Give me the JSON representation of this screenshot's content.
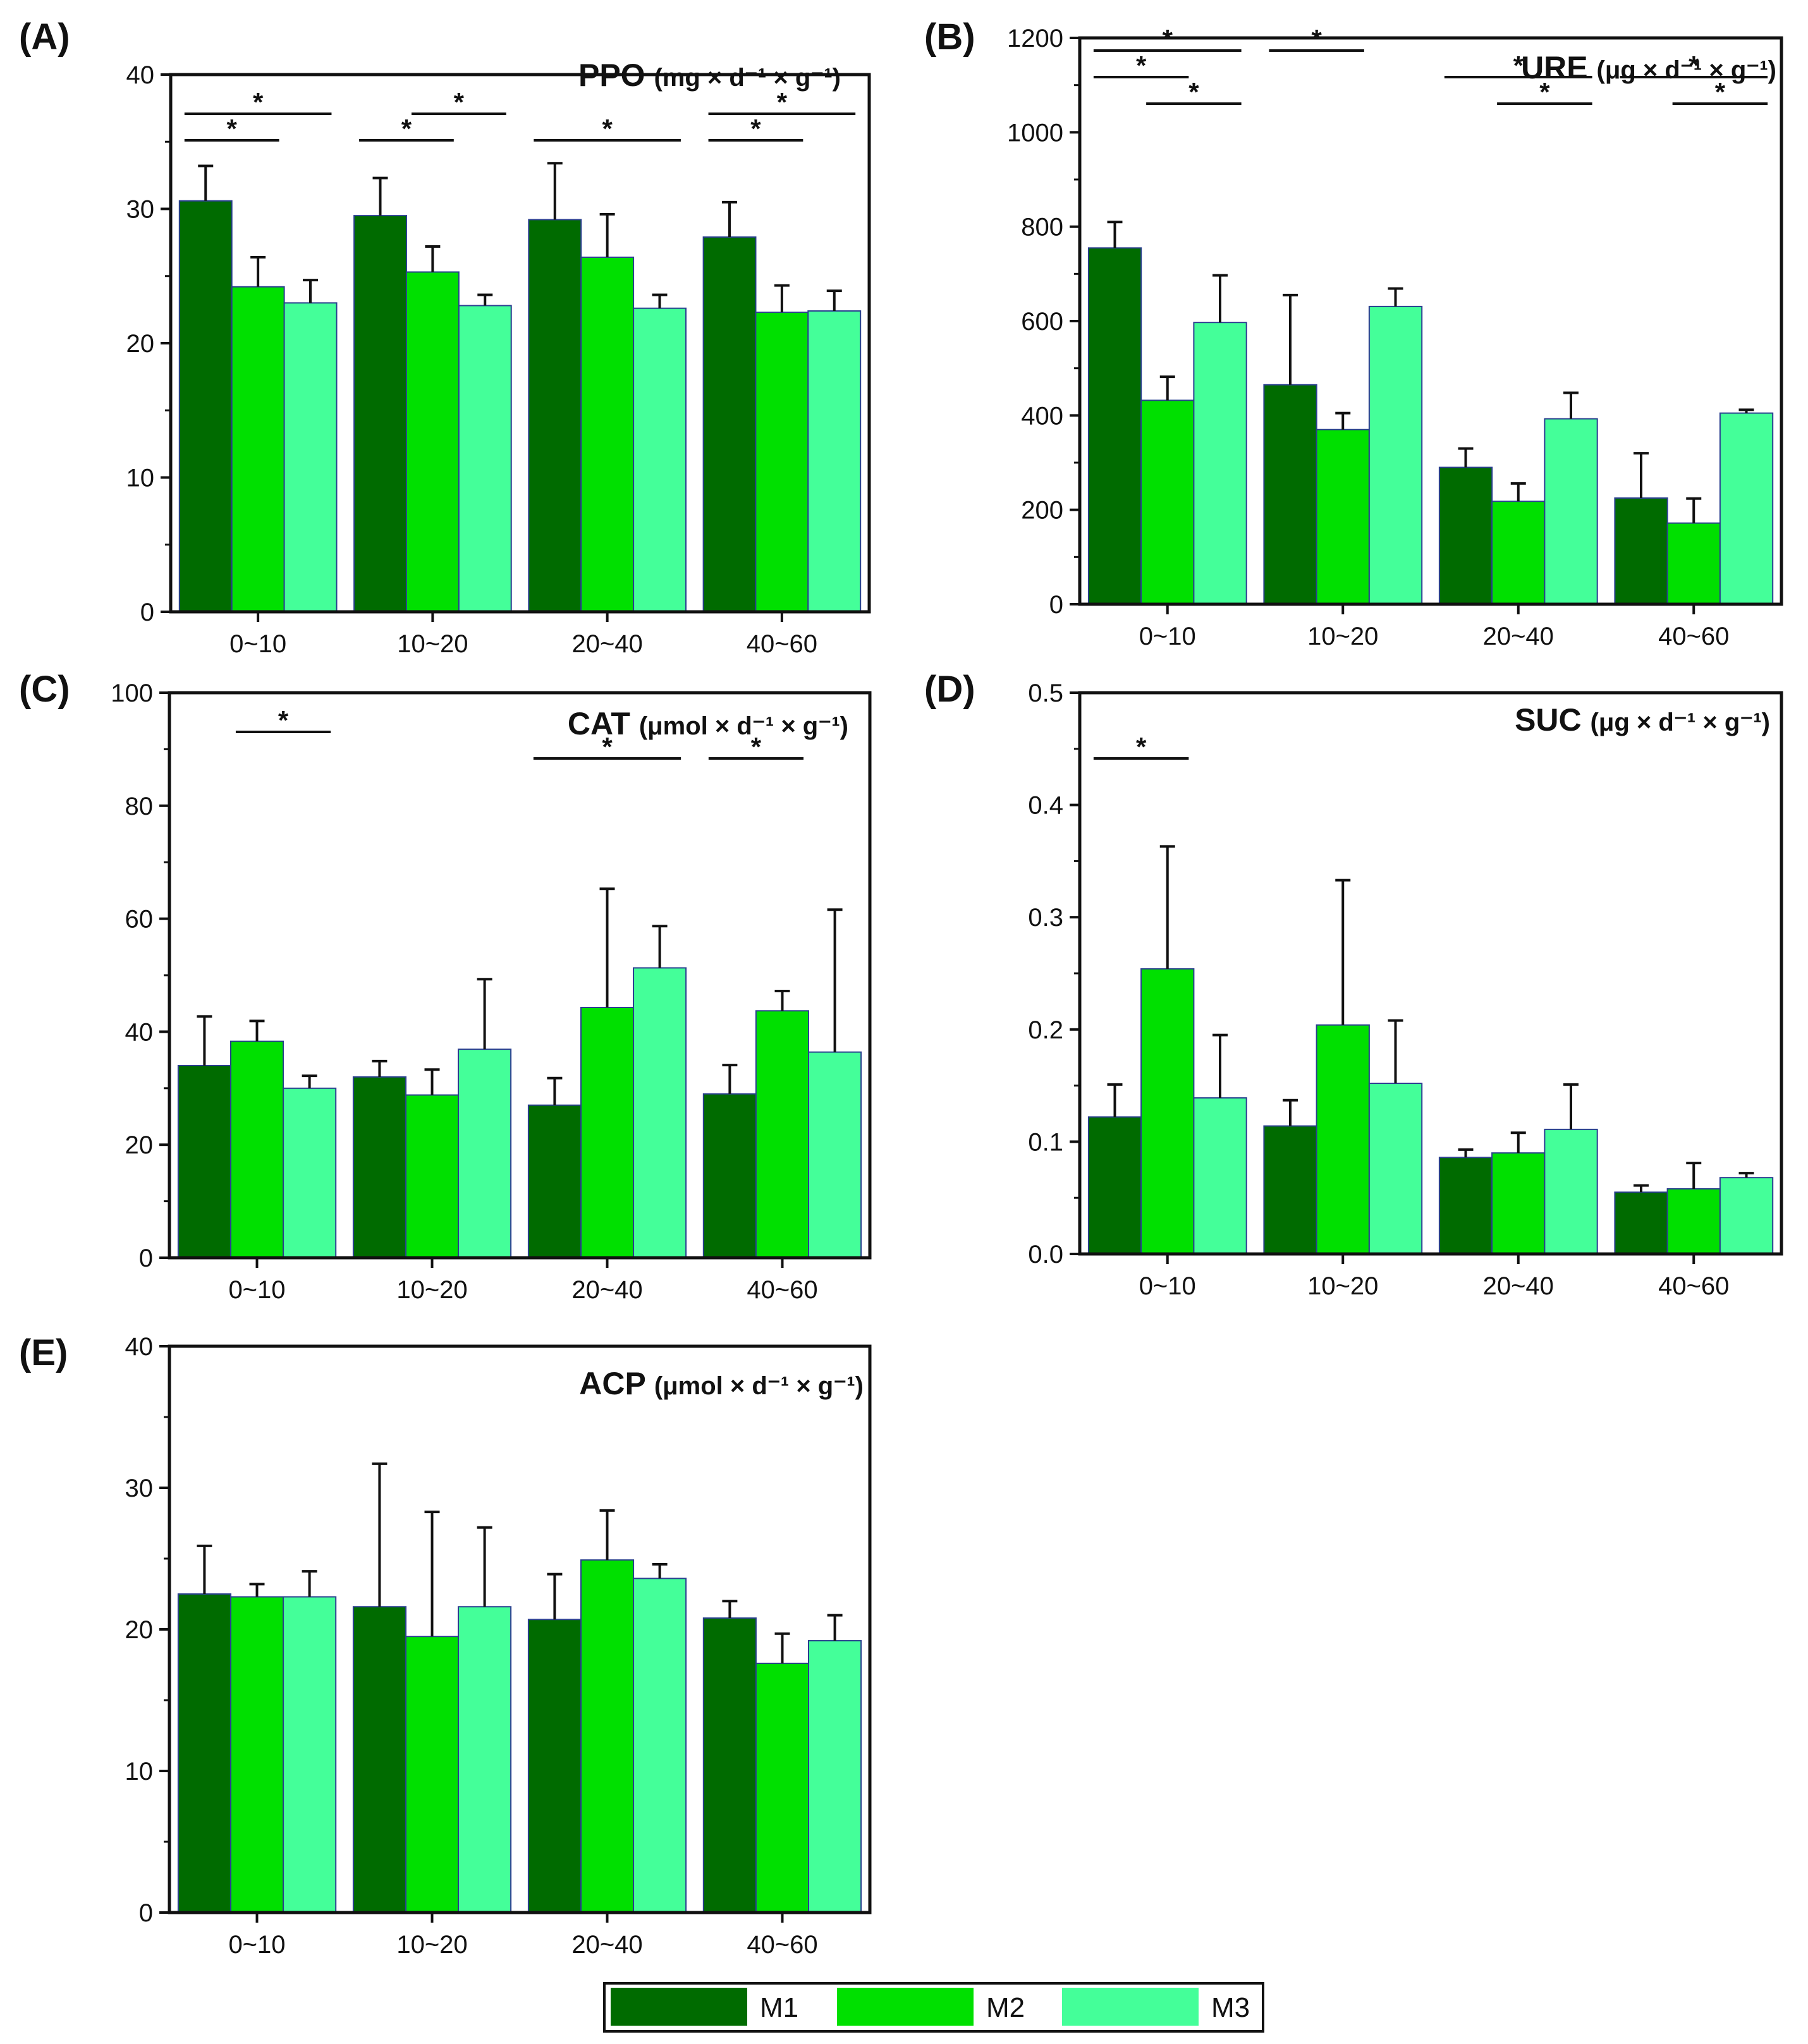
{
  "colors": {
    "M1": "#006b00",
    "M2": "#00e000",
    "M3": "#44ff99",
    "axis": "#111111",
    "bar_border": "#2a3f8f"
  },
  "legend": {
    "entries": [
      "M1",
      "M2",
      "M3"
    ]
  },
  "chart_data": [
    {
      "panel": "(A)",
      "type": "bar",
      "title": "PPO",
      "unit": "(mg × d⁻¹ × g⁻¹)",
      "categories": [
        "0~10",
        "10~20",
        "20~40",
        "40~60"
      ],
      "ylim": [
        0,
        40
      ],
      "yticks": [
        0,
        10,
        20,
        30,
        40
      ],
      "series": [
        {
          "name": "M1",
          "values": [
            30.6,
            29.5,
            29.2,
            27.9
          ],
          "errors": [
            2.6,
            2.8,
            4.2,
            2.6
          ]
        },
        {
          "name": "M2",
          "values": [
            24.2,
            25.3,
            26.4,
            22.3
          ],
          "errors": [
            2.2,
            1.9,
            3.2,
            2.0
          ]
        },
        {
          "name": "M3",
          "values": [
            23.0,
            22.8,
            22.6,
            22.4
          ],
          "errors": [
            1.7,
            0.8,
            1.0,
            1.5
          ]
        }
      ],
      "significance": [
        {
          "cat": 0,
          "from": 0,
          "to": 2,
          "level": 1,
          "label": "*"
        },
        {
          "cat": 0,
          "from": 0,
          "to": 1,
          "level": 0,
          "label": "*"
        },
        {
          "cat": 1,
          "from": 1,
          "to": 2,
          "level": 1,
          "label": "*"
        },
        {
          "cat": 1,
          "from": 0,
          "to": 1,
          "level": 0,
          "label": "*"
        },
        {
          "cat": 2,
          "from": 0,
          "to": 2,
          "level": 0,
          "label": "*"
        },
        {
          "cat": 3,
          "from": 0,
          "to": 2,
          "level": 1,
          "label": "*"
        },
        {
          "cat": 3,
          "from": 0,
          "to": 1,
          "level": 0,
          "label": "*"
        }
      ]
    },
    {
      "panel": "(B)",
      "type": "bar",
      "title": "URE",
      "unit": "(μg × d⁻¹ × g⁻¹)",
      "categories": [
        "0~10",
        "10~20",
        "20~40",
        "40~60"
      ],
      "ylim": [
        0,
        1200
      ],
      "yticks": [
        0,
        200,
        400,
        600,
        800,
        1000,
        1200
      ],
      "series": [
        {
          "name": "M1",
          "values": [
            755,
            465,
            290,
            225
          ],
          "errors": [
            55,
            190,
            40,
            95
          ]
        },
        {
          "name": "M2",
          "values": [
            432,
            370,
            218,
            172
          ],
          "errors": [
            50,
            35,
            38,
            52
          ]
        },
        {
          "name": "M3",
          "values": [
            597,
            631,
            393,
            405
          ],
          "errors": [
            100,
            38,
            55,
            7
          ]
        }
      ],
      "significance": [
        {
          "cat": 0,
          "from": 0,
          "to": 2,
          "level": 2,
          "label": "*"
        },
        {
          "cat": 0,
          "from": 0,
          "to": 1,
          "level": 1,
          "label": "*"
        },
        {
          "cat": 0,
          "from": 1,
          "to": 2,
          "level": 0,
          "label": "*"
        },
        {
          "cat": 1,
          "from": 0,
          "to": 1,
          "level": 2,
          "label": "*"
        },
        {
          "cat": 2,
          "from": 0,
          "to": 2,
          "level": 1,
          "label": "*"
        },
        {
          "cat": 2,
          "from": 1,
          "to": 2,
          "level": 0,
          "label": "*"
        },
        {
          "cat": 3,
          "from": 0,
          "to": 2,
          "level": 1,
          "label": "*"
        },
        {
          "cat": 3,
          "from": 1,
          "to": 2,
          "level": 0,
          "label": "*"
        }
      ]
    },
    {
      "panel": "(C)",
      "type": "bar",
      "title": "CAT",
      "unit": "(μmol × d⁻¹ × g⁻¹)",
      "categories": [
        "0~10",
        "10~20",
        "20~40",
        "40~60"
      ],
      "ylim": [
        0,
        100
      ],
      "yticks": [
        0,
        20,
        40,
        60,
        80,
        100
      ],
      "series": [
        {
          "name": "M1",
          "values": [
            34.0,
            32.0,
            27.0,
            29.0
          ],
          "errors": [
            8.7,
            2.8,
            4.8,
            5.1
          ]
        },
        {
          "name": "M2",
          "values": [
            38.3,
            28.8,
            44.3,
            43.7
          ],
          "errors": [
            3.6,
            4.5,
            21.0,
            3.5
          ]
        },
        {
          "name": "M3",
          "values": [
            30.0,
            36.9,
            51.3,
            36.4
          ],
          "errors": [
            2.2,
            12.4,
            7.4,
            25.2
          ]
        }
      ],
      "significance": [
        {
          "cat": 0,
          "from": 1,
          "to": 2,
          "level": 1,
          "label": "*"
        },
        {
          "cat": 2,
          "from": 0,
          "to": 2,
          "level": 0,
          "label": "*"
        },
        {
          "cat": 3,
          "from": 0,
          "to": 1,
          "level": 0,
          "label": "*"
        }
      ]
    },
    {
      "panel": "(D)",
      "type": "bar",
      "title": "SUC",
      "unit": "(μg × d⁻¹ × g⁻¹)",
      "categories": [
        "0~10",
        "10~20",
        "20~40",
        "40~60"
      ],
      "ylim": [
        0,
        0.5
      ],
      "yticks": [
        "0.0",
        "0.1",
        "0.2",
        "0.3",
        "0.4",
        "0.5"
      ],
      "series": [
        {
          "name": "M1",
          "values": [
            0.122,
            0.114,
            0.086,
            0.055
          ],
          "errors": [
            0.029,
            0.023,
            0.007,
            0.006
          ]
        },
        {
          "name": "M2",
          "values": [
            0.254,
            0.204,
            0.09,
            0.058
          ],
          "errors": [
            0.109,
            0.129,
            0.018,
            0.023
          ]
        },
        {
          "name": "M3",
          "values": [
            0.139,
            0.152,
            0.111,
            0.068
          ],
          "errors": [
            0.056,
            0.056,
            0.04,
            0.004
          ]
        }
      ],
      "significance": [
        {
          "cat": 0,
          "from": 0,
          "to": 1,
          "level": 0,
          "label": "*"
        }
      ]
    },
    {
      "panel": "(E)",
      "type": "bar",
      "title": "ACP",
      "unit": "(μmol × d⁻¹ × g⁻¹)",
      "categories": [
        "0~10",
        "10~20",
        "20~40",
        "40~60"
      ],
      "ylim": [
        0,
        40
      ],
      "yticks": [
        0,
        10,
        20,
        30,
        40
      ],
      "series": [
        {
          "name": "M1",
          "values": [
            22.5,
            21.6,
            20.7,
            20.8
          ],
          "errors": [
            3.4,
            10.1,
            3.2,
            1.2
          ]
        },
        {
          "name": "M2",
          "values": [
            22.3,
            19.5,
            24.9,
            17.6
          ],
          "errors": [
            0.9,
            8.8,
            3.5,
            2.1
          ]
        },
        {
          "name": "M3",
          "values": [
            22.3,
            21.6,
            23.6,
            19.2
          ],
          "errors": [
            1.8,
            5.6,
            1.0,
            1.8
          ]
        }
      ],
      "significance": []
    }
  ]
}
